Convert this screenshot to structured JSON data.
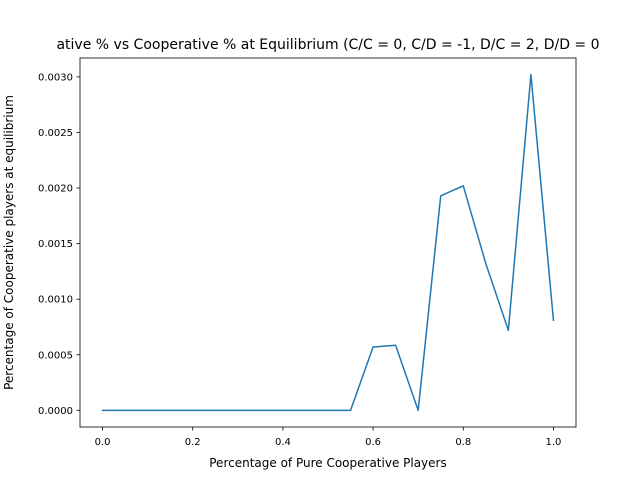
{
  "chart_data": {
    "type": "line",
    "title": "ative % vs Cooperative % at Equilibrium (C/C = 0, C/D = -1, D/C = 2, D/D = 0",
    "xlabel": "Percentage of Pure Cooperative Players",
    "ylabel": "Percentage of Cooperative players at equilibrium",
    "xlim": [
      -0.05,
      1.05
    ],
    "ylim": [
      -0.00015,
      0.00317
    ],
    "x_ticks": [
      0.0,
      0.2,
      0.4,
      0.6,
      0.8,
      1.0
    ],
    "x_tick_labels": [
      "0.0",
      "0.2",
      "0.4",
      "0.6",
      "0.8",
      "1.0"
    ],
    "y_ticks": [
      0.0,
      0.0005,
      0.001,
      0.0015,
      0.002,
      0.0025,
      0.003
    ],
    "y_tick_labels": [
      "0.0000",
      "0.0005",
      "0.0010",
      "0.0015",
      "0.0020",
      "0.0025",
      "0.0030"
    ],
    "grid": false,
    "series": [
      {
        "color": "#1f77b4",
        "x": [
          0.0,
          0.05,
          0.1,
          0.15,
          0.2,
          0.25,
          0.3,
          0.35,
          0.4,
          0.45,
          0.5,
          0.55,
          0.6,
          0.65,
          0.7,
          0.75,
          0.8,
          0.85,
          0.9,
          0.95,
          1.0
        ],
        "y": [
          0.0,
          0.0,
          0.0,
          0.0,
          0.0,
          0.0,
          0.0,
          0.0,
          0.0,
          0.0,
          0.0,
          0.0,
          0.00057,
          0.000585,
          0.0,
          0.00193,
          0.00202,
          0.00132,
          0.00072,
          0.00302,
          0.00081
        ]
      }
    ]
  }
}
